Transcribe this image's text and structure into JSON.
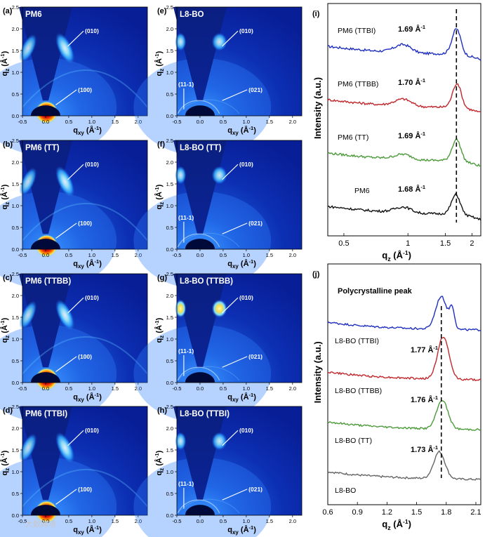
{
  "figure": {
    "watermark": "大数跨境",
    "giwaxs_axis": {
      "x_label": "q",
      "x_sub": "xy",
      "x_unit": " (Å",
      "x_unit_exp": "-1",
      "x_unit_close": ")",
      "y_label": "q",
      "y_sub": "z",
      "y_unit": " (Å",
      "y_unit_exp": "-1",
      "y_unit_close": ")",
      "x_ticks": [
        "-0.5",
        "0.0",
        "0.5",
        "1.0",
        "1.5",
        "2.0"
      ],
      "y_ticks": [
        "0.0",
        "0.5",
        "1.0",
        "1.5",
        "2.0",
        "2.5"
      ]
    },
    "giwaxs_panels": [
      {
        "letter": "(a)",
        "sample": "PM6",
        "peaks": [
          "(010)",
          "(100)"
        ]
      },
      {
        "letter": "(b)",
        "sample": "PM6 (TT)",
        "peaks": [
          "(010)",
          "(100)"
        ]
      },
      {
        "letter": "(c)",
        "sample": "PM6 (TTBB)",
        "peaks": [
          "(010)",
          "(100)"
        ]
      },
      {
        "letter": "(d)",
        "sample": "PM6 (TTBI)",
        "peaks": [
          "(010)",
          "(100)"
        ]
      },
      {
        "letter": "(e)",
        "sample": "L8-BO",
        "peaks": [
          "(010)",
          "(11-1)",
          "(021)"
        ]
      },
      {
        "letter": "(f)",
        "sample": "L8-BO (TT)",
        "peaks": [
          "(010)",
          "(11-1)",
          "(021)"
        ]
      },
      {
        "letter": "(g)",
        "sample": "L8-BO (TTBB)",
        "peaks": [
          "(010)",
          "(11-1)",
          "(021)"
        ]
      },
      {
        "letter": "(h)",
        "sample": "L8-BO (TTBI)",
        "peaks": [
          "(010)",
          "(11-1)",
          "(021)"
        ]
      }
    ]
  },
  "chart_data": [
    {
      "type": "line",
      "panel": "(i)",
      "xlabel": "q",
      "xlabel_sub": "z",
      "xlabel_unit": " (Å",
      "xlabel_unit_exp": "-1",
      "xlabel_unit_close": ")",
      "ylabel": "Intensity (a.u.)",
      "x_scale": "log",
      "xlim": [
        0.42,
        2.2
      ],
      "x_ticks": [
        0.5,
        1,
        1.5,
        2
      ],
      "x_tick_labels": [
        "0.5",
        "1",
        "1.5",
        "2"
      ],
      "marker_line_x": 1.69,
      "series": [
        {
          "name": "PM6 (TTBI)",
          "color": "#1f2fbf",
          "offset": 3,
          "peak_label": "1.69 Å",
          "peak_label_exp": "-1",
          "peak_q": 1.69,
          "bump_q": 0.95,
          "bump_amp": 0.35,
          "peak_amp": 0.65
        },
        {
          "name": "PM6 (TTBB)",
          "color": "#c1272d",
          "offset": 2,
          "peak_label": "1.70 Å",
          "peak_label_exp": "-1",
          "peak_q": 1.7,
          "bump_q": 0.95,
          "bump_amp": 0.3,
          "peak_amp": 0.62
        },
        {
          "name": "PM6 (TT)",
          "color": "#4c9a3a",
          "offset": 1,
          "peak_label": "1.69 Å",
          "peak_label_exp": "-1",
          "peak_q": 1.69,
          "bump_q": 0.95,
          "bump_amp": 0.22,
          "peak_amp": 0.55
        },
        {
          "name": "PM6",
          "color": "#111111",
          "offset": 0,
          "peak_label": "1.68 Å",
          "peak_label_exp": "-1",
          "peak_q": 1.68,
          "bump_q": 0.95,
          "bump_amp": 0.25,
          "peak_amp": 0.5
        }
      ]
    },
    {
      "type": "line",
      "panel": "(j)",
      "xlabel": "q",
      "xlabel_sub": "z",
      "xlabel_unit": " (Å",
      "xlabel_unit_exp": "-1",
      "xlabel_unit_close": ")",
      "ylabel": "Intensity (a.u.)",
      "x_scale": "linear",
      "xlim": [
        0.6,
        2.15
      ],
      "x_ticks": [
        0.6,
        0.9,
        1.2,
        1.5,
        1.8,
        2.1
      ],
      "x_tick_labels": [
        "0.6",
        "0.9",
        "1.2",
        "1.5",
        "1.8",
        "2.1"
      ],
      "marker_line_x": 1.75,
      "annotation": "Polycrystalline peak",
      "series": [
        {
          "name": "L8-BO (TTBI)",
          "color": "#1f2fbf",
          "offset": 3,
          "peak_label": "",
          "peak_label_exp": "",
          "peak_q": 1.75,
          "peak_amp": 0.85
        },
        {
          "name": "L8-BO (TTBB)",
          "color": "#c1272d",
          "offset": 2,
          "peak_label": "1.77 Å",
          "peak_label_exp": "-1",
          "peak_q": 1.77,
          "peak_amp": 1.1
        },
        {
          "name": "L8-BO (TT)",
          "color": "#4c9a3a",
          "offset": 1,
          "peak_label": "1.76 Å",
          "peak_label_exp": "-1",
          "peak_q": 1.76,
          "peak_amp": 0.75
        },
        {
          "name": "L8-BO",
          "color": "#666666",
          "offset": 0,
          "peak_label": "1.73 Å",
          "peak_label_exp": "-1",
          "peak_q": 1.73,
          "peak_amp": 0.7
        }
      ]
    }
  ]
}
